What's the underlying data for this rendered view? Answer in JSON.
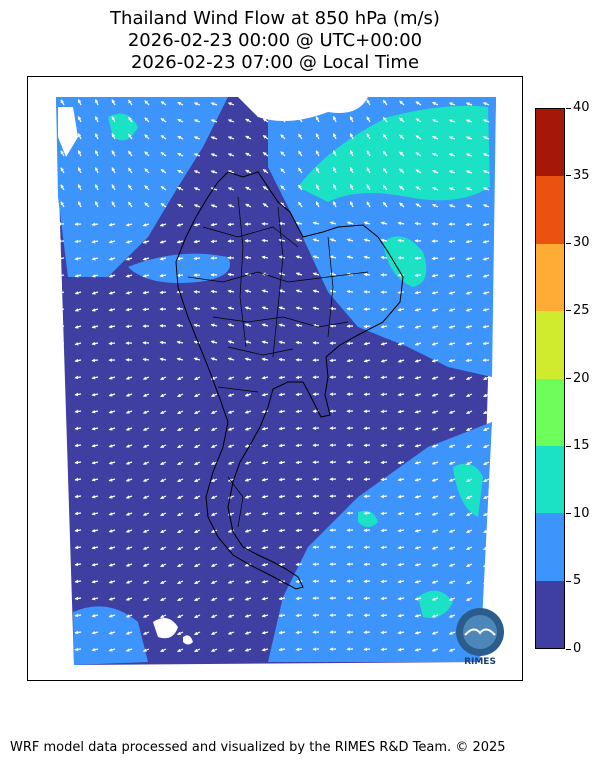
{
  "title": {
    "line1": "Thailand Wind Flow at 850 hPa (m/s)",
    "line2": "2026-02-23 00:00 @ UTC+00:00",
    "line3": "2026-02-23 07:00 @ Local Time"
  },
  "colorbar": {
    "ticks": [
      "0",
      "5",
      "10",
      "15",
      "20",
      "25",
      "30",
      "35",
      "40"
    ],
    "colors": [
      "#3e3fa0",
      "#3d95fb",
      "#1be1c5",
      "#6cff5a",
      "#d0ea2d",
      "#feac35",
      "#ec520f",
      "#a51706"
    ]
  },
  "map": {
    "land_color": "#3e3fa0",
    "logo_text": "RIMES"
  },
  "footer": "WRF model data processed and visualized by the RIMES R&D Team. © 2025"
}
